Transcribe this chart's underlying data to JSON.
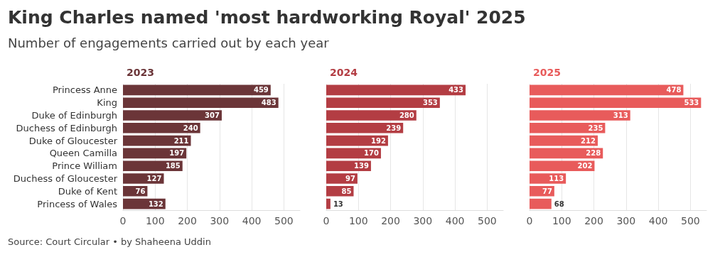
{
  "chart_data": [
    {
      "type": "other",
      "title": "King Charles named 'most hardworking Royal' 2025",
      "subtitle": "Number of engagements carried out by each year",
      "annotations": [
        "Source: Court Circular • by Shaheena Uddin"
      ]
    },
    {
      "type": "bar",
      "orientation": "horizontal",
      "title": "2023",
      "categories": [
        "Princess Anne",
        "King",
        "Duke of Edinburgh",
        "Duchess of Edinburgh",
        "Duke of Gloucester",
        "Queen Camilla",
        "Prince William",
        "Duchess of Gloucester",
        "Duke of Kent",
        "Princess of Wales"
      ],
      "values": [
        459,
        483,
        307,
        240,
        211,
        197,
        185,
        127,
        76,
        132
      ],
      "color": "#6b3538",
      "xlim": [
        0,
        550
      ],
      "xticks": [
        0,
        100,
        200,
        300,
        400,
        500
      ],
      "grid": "x",
      "data_labels": true
    },
    {
      "type": "bar",
      "orientation": "horizontal",
      "title": "2024",
      "categories": [
        null,
        null,
        null,
        null,
        null,
        null,
        null,
        null,
        null,
        null
      ],
      "values": [
        433,
        353,
        280,
        239,
        192,
        170,
        139,
        97,
        85,
        13
      ],
      "color": "#b33d43",
      "xlim": [
        0,
        550
      ],
      "xticks": [
        0,
        100,
        200,
        300,
        400,
        500
      ],
      "grid": "x",
      "data_labels": true,
      "tick_labels": "x"
    },
    {
      "type": "bar",
      "orientation": "horizontal",
      "title": "2025",
      "categories": [
        null,
        null,
        null,
        null,
        null,
        null,
        null,
        null,
        null,
        null
      ],
      "values": [
        478,
        533,
        313,
        235,
        212,
        228,
        202,
        113,
        77,
        68
      ],
      "color": "#e85b5b",
      "xlim": [
        0,
        550
      ],
      "xticks": [
        0,
        100,
        200,
        300,
        400,
        500
      ],
      "grid": "x",
      "data_labels": true,
      "tick_labels": "x"
    }
  ]
}
